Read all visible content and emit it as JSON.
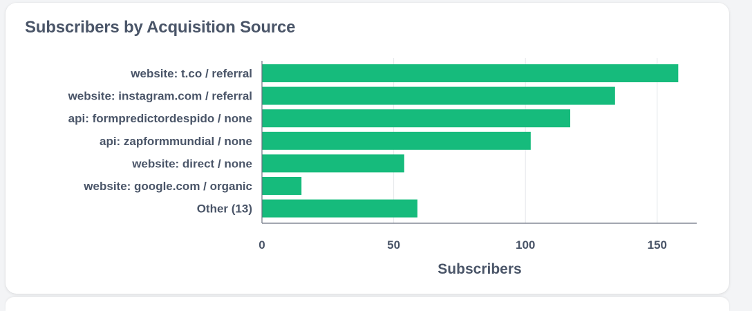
{
  "card": {
    "title": "Subscribers by Acquisition Source"
  },
  "colors": {
    "bar": "#16bb7c",
    "axis_text": "#4a5568",
    "grid": "#e5e7eb",
    "axis_line": "#6b7280"
  },
  "chart_data": {
    "type": "bar",
    "orientation": "horizontal",
    "title": "Subscribers by Acquisition Source",
    "xlabel": "Subscribers",
    "ylabel": "",
    "categories": [
      "website: t.co / referral",
      "website: instagram.com / referral",
      "api: formpredictordespido / none",
      "api: zapformmundial / none",
      "website: direct / none",
      "website: google.com / organic",
      "Other (13)"
    ],
    "values": [
      158,
      134,
      117,
      102,
      54,
      15,
      59
    ],
    "xlim": [
      0,
      165
    ],
    "xticks": [
      0,
      50,
      100,
      150
    ],
    "grid": true,
    "legend": "none"
  }
}
